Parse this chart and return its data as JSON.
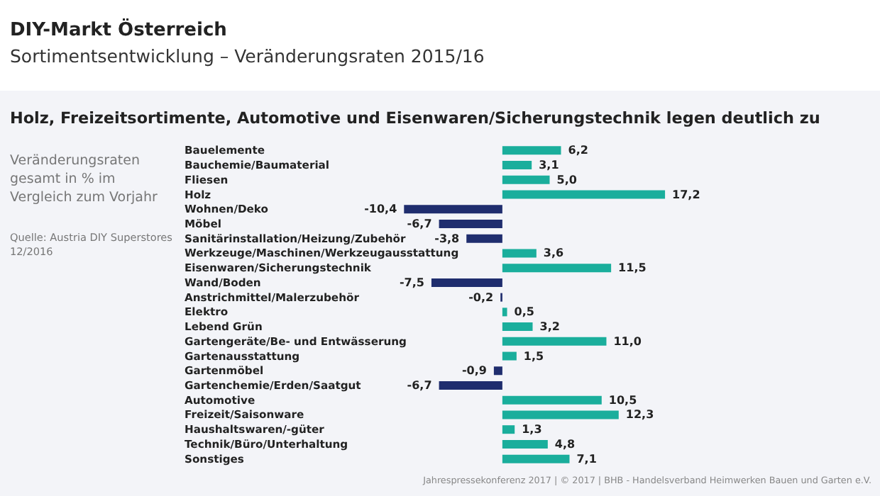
{
  "chart_data": {
    "type": "bar",
    "orientation": "horizontal",
    "title": "DIY-Markt Österreich",
    "subtitle": "Sortimentsentwicklung – Veränderungsraten 2015/16",
    "annotations": [
      "Holz, Freizeitsortimente, Automotive und Eisenwaren/Sicherungstechnik legen deutlich zu",
      "Veränderungsraten gesamt in % im Vergleich zum Vorjahr",
      "Quelle: Austria DIY Superstores 12/2016",
      "Jahrespressekonferenz 2017 |  © 2017 | BHB - Handelsverband Heimwerken Bauen und Garten e.V."
    ],
    "categories": [
      "Bauelemente",
      "Bauchemie/Baumaterial",
      "Fliesen",
      "Holz",
      "Wohnen/Deko",
      "Möbel",
      "Sanitärinstallation/Heizung/Zubehör",
      "Werkzeuge/Maschinen/Werkzeugausstattung",
      "Eisenwaren/Sicherungstechnik",
      "Wand/Boden",
      "Anstrichmittel/Malerzubehör",
      "Elektro",
      "Lebend Grün",
      "Gartengeräte/Be- und Entwässerung",
      "Gartenausstattung",
      "Gartenmöbel",
      "Gartenchemie/Erden/Saatgut",
      "Automotive",
      "Freizeit/Saisonware",
      "Haushaltswaren/-güter",
      "Technik/Büro/Unterhaltung",
      "Sonstiges"
    ],
    "values": [
      6.2,
      3.1,
      5.0,
      17.2,
      -10.4,
      -6.7,
      -3.8,
      3.6,
      11.5,
      -7.5,
      -0.2,
      0.5,
      3.2,
      11.0,
      1.5,
      -0.9,
      -6.7,
      10.5,
      12.3,
      1.3,
      4.8,
      7.1
    ],
    "value_labels": [
      "6,2",
      "3,1",
      "5,0",
      "17,2",
      "-10,4",
      "-6,7",
      "-3,8",
      "3,6",
      "11,5",
      "-7,5",
      "-0,2",
      "0,5",
      "3,2",
      "11,0",
      "1,5",
      "-0,9",
      "-6,7",
      "10,5",
      "12,3",
      "1,3",
      "4,8",
      "7,1"
    ],
    "colors": [
      "#1aae9c",
      "#1aae9c",
      "#1aae9c",
      "#1aae9c",
      "#1f2d6e",
      "#1f2d6e",
      "#1f2d6e",
      "#1aae9c",
      "#1aae9c",
      "#1f2d6e",
      "#1f2d6e",
      "#1aae9c",
      "#1aae9c",
      "#1aae9c",
      "#1aae9c",
      "#1f2d6e",
      "#1f2d6e",
      "#1aae9c",
      "#1aae9c",
      "#1aae9c",
      "#1aae9c",
      "#1aae9c"
    ]
  }
}
